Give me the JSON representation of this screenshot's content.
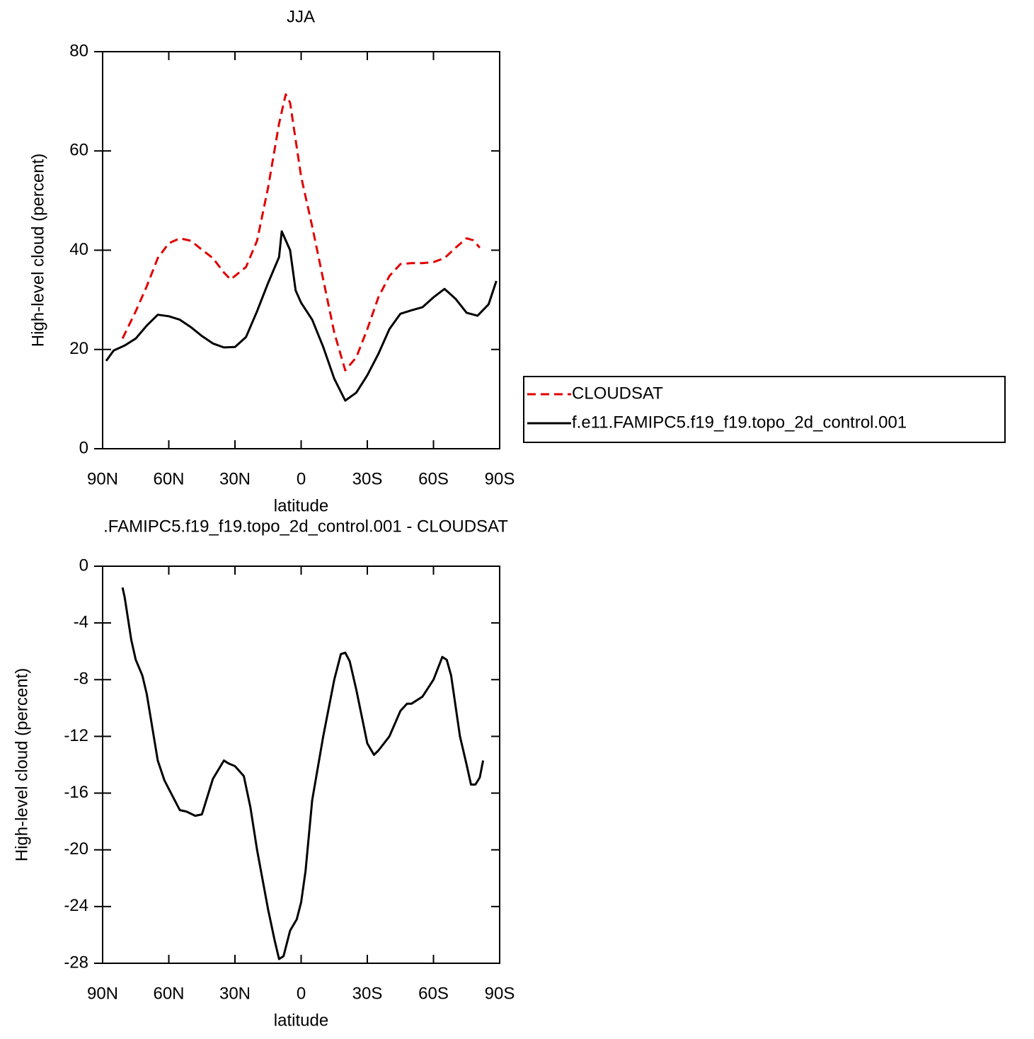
{
  "chart_data": [
    {
      "type": "line",
      "title": "JJA",
      "x_label": "latitude",
      "y_label": "High-level cloud (percent)",
      "xlim": [
        90,
        -90
      ],
      "ylim": [
        0,
        80
      ],
      "xticks": [
        {
          "value": 90,
          "label": "90N"
        },
        {
          "value": 60,
          "label": "60N"
        },
        {
          "value": 30,
          "label": "30N"
        },
        0,
        {
          "value": -30,
          "label": "30S"
        },
        {
          "value": -60,
          "label": "60S"
        },
        {
          "value": -90,
          "label": "90S"
        }
      ],
      "yticks": [
        0,
        20,
        40,
        60,
        80
      ],
      "legend": "right",
      "series": [
        {
          "name": "CLOUDSAT",
          "color": "#e00000",
          "dashed": true,
          "x": [
            81,
            75,
            70,
            65,
            60,
            55,
            50,
            45,
            40,
            35,
            32,
            25,
            20,
            15,
            10,
            7,
            5,
            0,
            -5,
            -10,
            -15,
            -20,
            -25,
            -30,
            -35,
            -40,
            -45,
            -50,
            -55,
            -60,
            -65,
            -70,
            -75,
            -78,
            -81
          ],
          "values": [
            22.2,
            27.7,
            32.7,
            38.4,
            41.4,
            42.4,
            41.9,
            40.1,
            38.4,
            35.5,
            34.1,
            36.6,
            41.9,
            52.6,
            65.5,
            71.4,
            69.7,
            54.8,
            44.8,
            34.1,
            23.4,
            15.8,
            18.4,
            24.1,
            30.5,
            34.8,
            37.2,
            37.4,
            37.4,
            37.6,
            38.4,
            40.5,
            42.4,
            42.0,
            40.5
          ]
        },
        {
          "name": "f.e11.FAMIPC5.f19_f19.topo_2d_control.001",
          "color": "#000000",
          "dashed": false,
          "x": [
            88.4,
            85,
            80,
            75,
            70,
            65,
            60,
            55,
            50,
            45,
            40,
            35,
            30,
            25,
            20,
            15,
            10,
            8.8,
            5,
            2.5,
            0,
            -5,
            -10,
            -15,
            -20,
            -25,
            -30,
            -35,
            -40,
            -45,
            -50,
            -55,
            -60,
            -65,
            -70,
            -75,
            -80,
            -85,
            -88.5
          ],
          "values": [
            17.7,
            19.8,
            20.8,
            22.2,
            24.8,
            27.0,
            26.7,
            26.0,
            24.5,
            22.7,
            21.2,
            20.4,
            20.5,
            22.5,
            27.7,
            33.4,
            38.6,
            43.8,
            40.0,
            31.9,
            29.4,
            26.0,
            20.5,
            14.1,
            9.7,
            11.3,
            14.8,
            19.1,
            24.1,
            27.2,
            27.9,
            28.5,
            30.5,
            32.2,
            30.2,
            27.4,
            26.8,
            29.1,
            33.8
          ]
        }
      ]
    },
    {
      "type": "line",
      "title": ".FAMIPC5.f19_f19.topo_2d_control.001  -  CLOUDSAT",
      "x_label": "latitude",
      "y_label": "High-level cloud (percent)",
      "xlim": [
        90,
        -90
      ],
      "ylim": [
        -28,
        0
      ],
      "xticks": [
        {
          "value": 90,
          "label": "90N"
        },
        {
          "value": 60,
          "label": "60N"
        },
        {
          "value": 30,
          "label": "30N"
        },
        0,
        {
          "value": -30,
          "label": "30S"
        },
        {
          "value": -60,
          "label": "60S"
        },
        {
          "value": -90,
          "label": "90S"
        }
      ],
      "yticks": [
        0,
        -4,
        -8,
        -12,
        -16,
        -20,
        -24,
        -28
      ],
      "series": [
        {
          "color": "#000000",
          "dashed": false,
          "x": [
            81,
            80,
            77,
            75,
            72,
            70,
            65,
            62,
            60,
            55,
            52,
            48,
            45,
            40,
            35,
            33,
            30,
            26,
            23,
            20,
            15,
            12,
            10,
            8,
            5,
            2,
            0,
            -2,
            -5,
            -10,
            -15,
            -18,
            -20,
            -22,
            -25,
            -30,
            -33,
            -35,
            -40,
            -45,
            -48,
            -50,
            -55,
            -60,
            -64,
            -66,
            -68,
            -72,
            -75,
            -77,
            -79,
            -81,
            -82.5
          ],
          "values": [
            -1.5,
            -2.2,
            -5.2,
            -6.6,
            -7.7,
            -9.0,
            -13.7,
            -15.1,
            -15.7,
            -17.2,
            -17.3,
            -17.6,
            -17.5,
            -15.0,
            -13.7,
            -13.9,
            -14.1,
            -14.8,
            -17.0,
            -20.0,
            -24.2,
            -26.4,
            -27.7,
            -27.5,
            -25.7,
            -24.9,
            -23.7,
            -21.5,
            -16.5,
            -12.0,
            -8.0,
            -6.2,
            -6.1,
            -6.7,
            -8.7,
            -12.5,
            -13.3,
            -13.0,
            -12.0,
            -10.2,
            -9.7,
            -9.7,
            -9.2,
            -8.0,
            -6.4,
            -6.6,
            -7.7,
            -12.0,
            -14.0,
            -15.4,
            -15.4,
            -14.9,
            -13.7
          ]
        }
      ]
    }
  ]
}
